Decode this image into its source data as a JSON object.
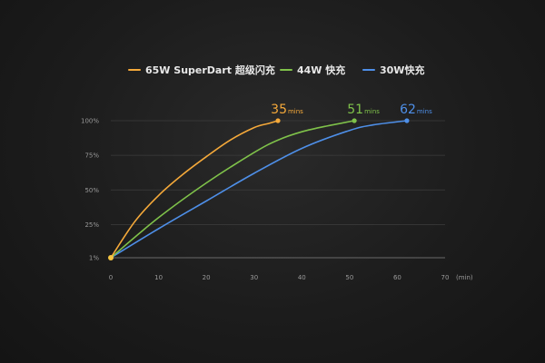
{
  "chart_data": {
    "type": "line",
    "xlabel": "",
    "xunit": "(min)",
    "ylabel": "",
    "xlim": [
      0,
      70
    ],
    "ylim": [
      1,
      100
    ],
    "x_ticks": [
      0,
      10,
      20,
      30,
      40,
      50,
      60,
      70
    ],
    "x_tick_labels": [
      "0",
      "10",
      "20",
      "30",
      "40",
      "50",
      "60",
      "70"
    ],
    "y_ticks": [
      1,
      25,
      50,
      75,
      100
    ],
    "y_tick_labels": [
      "1%",
      "25%",
      "50%",
      "75%",
      "100%"
    ],
    "grid": true,
    "legend_position": "top",
    "series": [
      {
        "name": "65W SuperDart 超级闪充",
        "color": "#f5a93a",
        "x": [
          0,
          5,
          10,
          15,
          20,
          25,
          30,
          33,
          35
        ],
        "y": [
          1,
          27,
          46,
          61,
          74,
          86,
          95,
          98,
          100
        ],
        "end_value": "35",
        "end_unit": "mins"
      },
      {
        "name": "44W 快充",
        "color": "#7fc24a",
        "x": [
          0,
          10,
          20,
          30,
          35,
          40,
          45,
          51
        ],
        "y": [
          1,
          30,
          55,
          77,
          86,
          92,
          96,
          100
        ],
        "end_value": "51",
        "end_unit": "mins"
      },
      {
        "name": "30W快充",
        "color": "#4e8fe8",
        "x": [
          0,
          10,
          20,
          30,
          40,
          50,
          55,
          62
        ],
        "y": [
          1,
          22,
          42,
          62,
          80,
          93,
          97,
          100
        ],
        "end_value": "62",
        "end_unit": "mins"
      }
    ]
  }
}
